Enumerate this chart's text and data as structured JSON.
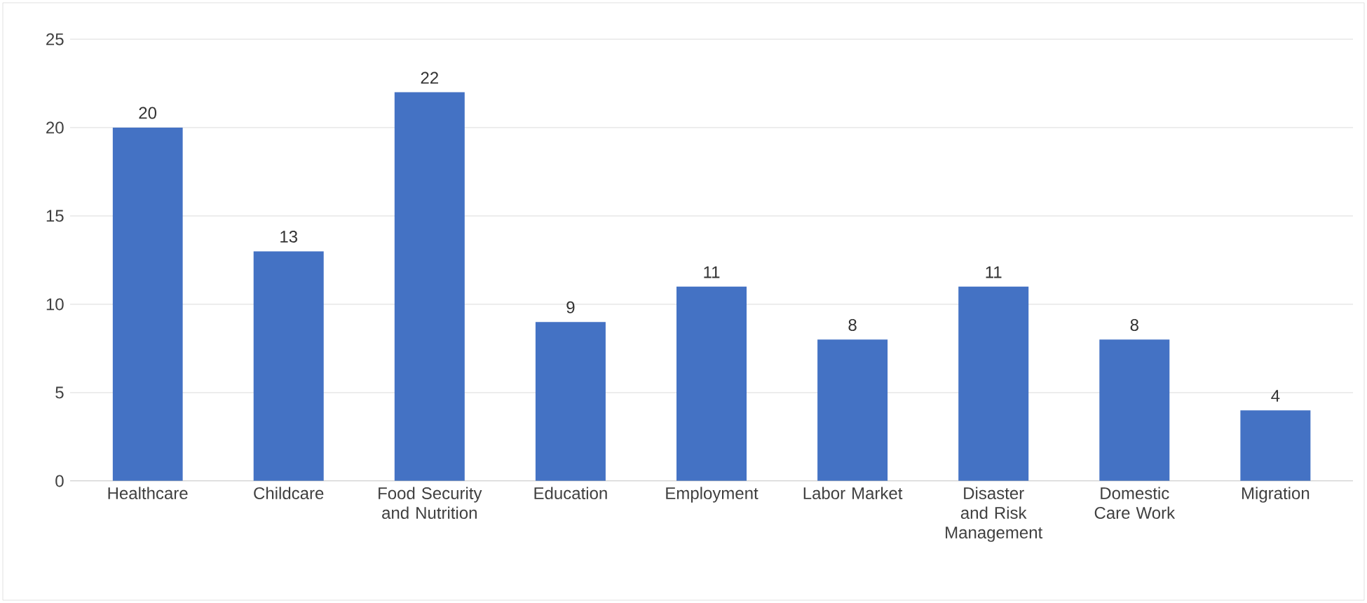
{
  "chart_data": {
    "type": "bar",
    "categories": [
      "Healthcare",
      "Childcare",
      "Food Security and Nutrition",
      "Education",
      "Employment",
      "Labor Market",
      "Disaster and Risk Management",
      "Domestic Care Work",
      "Migration"
    ],
    "values": [
      20,
      13,
      22,
      9,
      11,
      8,
      11,
      8,
      4
    ],
    "color": "#4472c4",
    "ylim": [
      0,
      25
    ],
    "yticks": [
      0,
      5,
      10,
      15,
      20,
      25
    ],
    "grid": "y",
    "data_labels": true
  }
}
